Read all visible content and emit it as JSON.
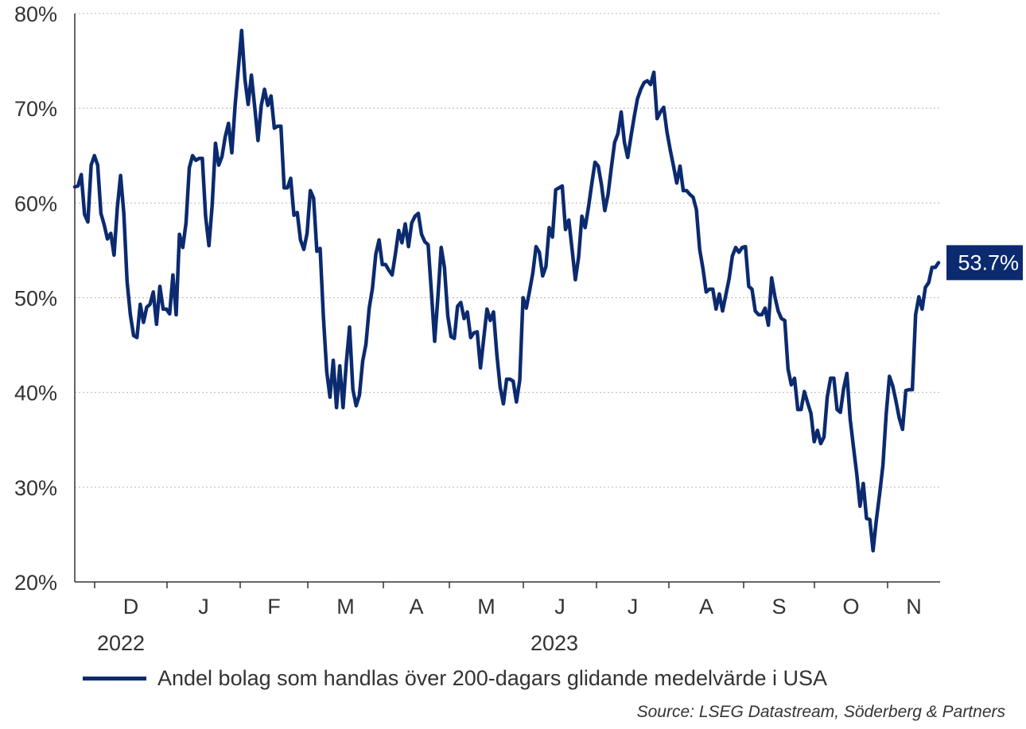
{
  "chart_data": {
    "type": "line",
    "title": "",
    "xlabel": "",
    "ylabel": "",
    "ylim": [
      20,
      80
    ],
    "y_ticks": [
      "20%",
      "30%",
      "40%",
      "50%",
      "60%",
      "70%",
      "80%"
    ],
    "y_tick_values": [
      20,
      30,
      40,
      50,
      60,
      70,
      80
    ],
    "grid": true,
    "legend_position": "bottom-left",
    "month_labels": [
      "D",
      "J",
      "F",
      "M",
      "A",
      "M",
      "J",
      "J",
      "A",
      "S",
      "O",
      "N"
    ],
    "year_labels": [
      "2022",
      "2023"
    ],
    "end_label": "53.7%",
    "source": "Source: LSEG Datastream, Söderberg & Partners",
    "series": [
      {
        "name": "Andel bolag som handlas över 200-dagars glidande medelvärde i USA",
        "color": "#0B2A6F",
        "values": [
          61.7,
          61.8,
          63.0,
          58.8,
          58.0,
          64.0,
          65.0,
          64.0,
          58.9,
          57.7,
          56.2,
          56.8,
          54.5,
          59.5,
          62.9,
          58.9,
          51.7,
          48.2,
          46.0,
          45.8,
          49.3,
          47.4,
          49.0,
          49.3,
          50.6,
          47.2,
          51.2,
          48.8,
          48.8,
          48.3,
          52.4,
          48.2,
          56.7,
          55.3,
          57.9,
          63.7,
          65.0,
          64.5,
          64.7,
          64.7,
          58.6,
          55.5,
          59.8,
          66.3,
          64.0,
          64.9,
          67.0,
          68.4,
          65.3,
          70.3,
          74.2,
          78.2,
          73.1,
          70.4,
          73.5,
          70.1,
          66.6,
          70.3,
          72.0,
          70.3,
          71.3,
          67.9,
          68.1,
          68.1,
          61.6,
          61.6,
          62.6,
          58.7,
          59.0,
          56.1,
          55.1,
          56.8,
          61.3,
          60.5,
          54.9,
          55.2,
          48.0,
          42.2,
          39.5,
          43.4,
          38.4,
          42.8,
          38.4,
          43.1,
          46.9,
          40.3,
          38.6,
          39.7,
          43.3,
          45.1,
          48.9,
          51.0,
          54.6,
          56.1,
          53.5,
          53.5,
          52.9,
          52.4,
          54.6,
          57.1,
          55.8,
          57.8,
          55.4,
          57.9,
          58.6,
          58.9,
          56.7,
          55.9,
          55.6,
          50.6,
          45.4,
          50.1,
          55.3,
          53.2,
          48.1,
          45.9,
          45.7,
          49.1,
          49.5,
          47.8,
          48.5,
          45.8,
          46.3,
          46.4,
          42.6,
          45.7,
          48.8,
          47.6,
          48.5,
          44.0,
          40.6,
          38.8,
          41.4,
          41.4,
          41.2,
          39.0,
          41.3,
          50.0,
          48.9,
          50.7,
          52.6,
          55.4,
          54.8,
          52.3,
          53.3,
          57.4,
          56.4,
          61.4,
          61.6,
          61.8,
          57.2,
          58.2,
          55.1,
          51.9,
          54.3,
          58.6,
          57.4,
          59.5,
          62.0,
          64.3,
          63.9,
          61.9,
          59.2,
          60.9,
          63.7,
          66.4,
          67.3,
          69.6,
          66.4,
          64.8,
          67.0,
          69.1,
          71.0,
          72.0,
          72.7,
          72.9,
          72.5,
          73.8,
          68.9,
          69.6,
          70.1,
          67.5,
          65.6,
          63.9,
          62.1,
          63.9,
          61.3,
          61.3,
          60.9,
          60.6,
          59.3,
          55.1,
          53.1,
          50.6,
          50.9,
          50.9,
          48.8,
          50.4,
          48.6,
          50.3,
          52.0,
          54.4,
          55.3,
          54.8,
          55.3,
          55.4,
          51.2,
          50.9,
          48.6,
          48.2,
          48.2,
          48.9,
          47.1,
          52.1,
          50.1,
          48.6,
          47.8,
          47.6,
          42.5,
          40.8,
          41.5,
          38.2,
          38.2,
          40.1,
          38.9,
          37.8,
          34.8,
          36.0,
          34.6,
          35.3,
          39.5,
          41.5,
          41.5,
          38.2,
          37.9,
          40.4,
          42.0,
          37.2,
          34.3,
          31.4,
          28.0,
          30.4,
          26.7,
          26.6,
          23.3,
          26.5,
          29.3,
          32.3,
          37.7,
          41.7,
          40.7,
          39.1,
          37.3,
          36.1,
          40.2,
          40.3,
          40.3,
          48.2,
          50.1,
          48.8,
          51.1,
          51.6,
          53.2,
          53.2,
          53.7
        ]
      }
    ]
  }
}
